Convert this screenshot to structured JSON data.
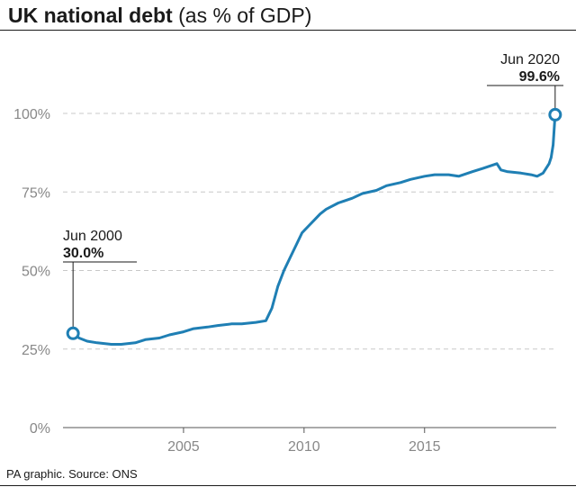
{
  "title": {
    "bold": "UK national debt",
    "light": " (as % of GDP)"
  },
  "source": "PA graphic. Source: ONS",
  "colors": {
    "line": "#1f7fb4",
    "grid": "#c8c8c8",
    "text": "#1a1a1a",
    "tick": "#888888"
  },
  "chart_data": {
    "type": "line",
    "title": "UK national debt (as % of GDP)",
    "xlabel": "",
    "ylabel": "",
    "y_unit": "% of GDP",
    "xlim": [
      "2000-01",
      "2020-12"
    ],
    "ylim": [
      0,
      110
    ],
    "y_ticks": [
      0,
      25,
      50,
      75,
      100
    ],
    "y_tick_labels": [
      "0%",
      "25%",
      "50%",
      "75%",
      "100%"
    ],
    "x_ticks": [
      2005,
      2010,
      2015
    ],
    "x_tick_labels": [
      "2005",
      "2010",
      "2015"
    ],
    "grid": "horizontal dashed",
    "series": [
      {
        "x": [
          "2000-06",
          "2000-09",
          "2001-01",
          "2001-06",
          "2002-01",
          "2002-06",
          "2003-01",
          "2003-06",
          "2004-01",
          "2004-06",
          "2005-01",
          "2005-06",
          "2006-01",
          "2006-06",
          "2007-01",
          "2007-06",
          "2008-01",
          "2008-06",
          "2008-09",
          "2008-12",
          "2009-03",
          "2009-06",
          "2009-09",
          "2009-12",
          "2010-03",
          "2010-06",
          "2010-09",
          "2010-12",
          "2011-06",
          "2012-01",
          "2012-06",
          "2013-01",
          "2013-06",
          "2014-01",
          "2014-06",
          "2015-01",
          "2015-06",
          "2016-01",
          "2016-06",
          "2017-01",
          "2017-06",
          "2018-01",
          "2018-03",
          "2018-06",
          "2019-01",
          "2019-06",
          "2019-09",
          "2019-12",
          "2020-03",
          "2020-04",
          "2020-05",
          "2020-06"
        ],
        "values": [
          30.0,
          28.5,
          27.5,
          27.0,
          26.5,
          26.5,
          27.0,
          28.0,
          28.5,
          29.5,
          30.5,
          31.5,
          32.0,
          32.5,
          33.0,
          33.0,
          33.5,
          34.0,
          38.0,
          45.0,
          50.0,
          54.0,
          58.0,
          62.0,
          64.0,
          66.0,
          68.0,
          69.5,
          71.5,
          73.0,
          74.5,
          75.5,
          77.0,
          78.0,
          79.0,
          80.0,
          80.5,
          80.5,
          80.0,
          81.5,
          82.5,
          84.0,
          82.0,
          81.5,
          81.0,
          80.5,
          80.0,
          81.0,
          84.0,
          86.0,
          90.0,
          99.6
        ]
      }
    ],
    "annotations": [
      {
        "date": "Jun 2000",
        "value": "30.0%",
        "x": "2000-06",
        "y": 30.0
      },
      {
        "date": "Jun 2020",
        "value": "99.6%",
        "x": "2020-06",
        "y": 99.6
      }
    ]
  }
}
